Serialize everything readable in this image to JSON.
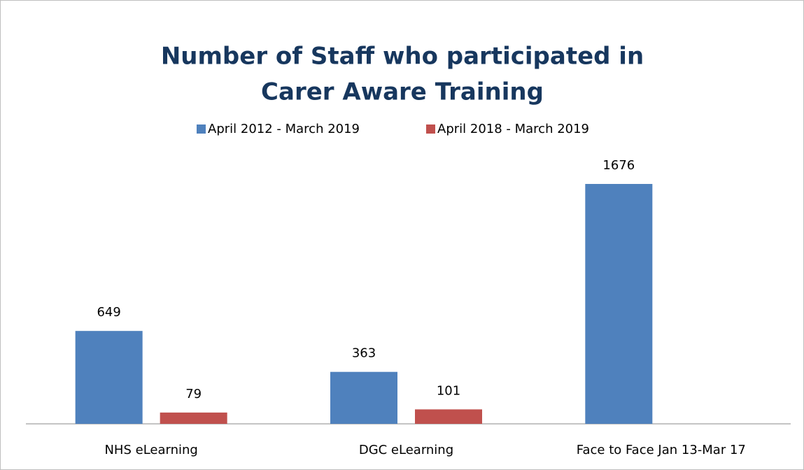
{
  "chart_data": {
    "type": "bar",
    "title": [
      "Number of Staff who participated in",
      "Carer Aware Training"
    ],
    "categories": [
      "NHS eLearning",
      "DGC eLearning",
      "Face to Face Jan 13-Mar 17"
    ],
    "series": [
      {
        "name": "April 2012 - March 2019",
        "color": "#4f81bd",
        "values": [
          649,
          363,
          1676
        ]
      },
      {
        "name": "April 2018 - March 2019",
        "color": "#c0504d",
        "values": [
          79,
          101,
          null
        ]
      }
    ],
    "legend": "top"
  }
}
